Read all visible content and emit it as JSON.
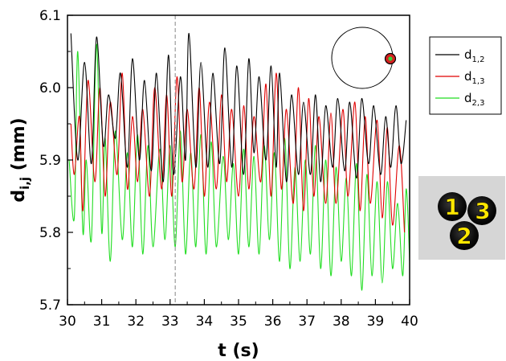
{
  "chart_data": {
    "type": "line",
    "xlabel": "t (s)",
    "ylabel_main": "d",
    "ylabel_sub": "i,j",
    "ylabel_unit": " (mm)",
    "xlim": [
      30,
      40
    ],
    "ylim": [
      5.7,
      6.1
    ],
    "x_ticks": [
      "30",
      "31",
      "32",
      "33",
      "34",
      "35",
      "36",
      "37",
      "38",
      "39",
      "40"
    ],
    "y_ticks": [
      "5.7",
      "5.8",
      "5.9",
      "6.0",
      "6.1"
    ],
    "marker_line_t": 33.15,
    "grid": false,
    "legend_position": "right",
    "series": [
      {
        "name_main": "d",
        "name_sub": "1,2",
        "color": "#000000",
        "peaks": [
          [
            30.1,
            6.075
          ],
          [
            30.5,
            6.035
          ],
          [
            30.85,
            6.07
          ],
          [
            31.2,
            5.99
          ],
          [
            31.55,
            6.02
          ],
          [
            31.9,
            6.04
          ],
          [
            32.25,
            6.01
          ],
          [
            32.6,
            6.02
          ],
          [
            32.95,
            6.045
          ],
          [
            33.3,
            6.015
          ],
          [
            33.55,
            6.075
          ],
          [
            33.9,
            6.035
          ],
          [
            34.25,
            6.02
          ],
          [
            34.6,
            6.055
          ],
          [
            34.95,
            6.03
          ],
          [
            35.3,
            6.04
          ],
          [
            35.6,
            6.015
          ],
          [
            35.95,
            6.03
          ],
          [
            36.2,
            6.02
          ],
          [
            36.55,
            5.99
          ],
          [
            36.9,
            5.98
          ],
          [
            37.25,
            5.99
          ],
          [
            37.55,
            5.975
          ],
          [
            37.9,
            5.985
          ],
          [
            38.25,
            5.98
          ],
          [
            38.6,
            5.985
          ],
          [
            38.95,
            5.975
          ],
          [
            39.3,
            5.96
          ],
          [
            39.6,
            5.975
          ],
          [
            39.9,
            5.955
          ]
        ],
        "troughs": [
          [
            30.3,
            5.9
          ],
          [
            30.7,
            5.895
          ],
          [
            31.05,
            5.92
          ],
          [
            31.4,
            5.93
          ],
          [
            31.75,
            5.89
          ],
          [
            32.1,
            5.9
          ],
          [
            32.45,
            5.885
          ],
          [
            32.8,
            5.87
          ],
          [
            33.1,
            5.88
          ],
          [
            33.45,
            5.9
          ],
          [
            33.75,
            5.89
          ],
          [
            34.1,
            5.89
          ],
          [
            34.45,
            5.895
          ],
          [
            34.8,
            5.89
          ],
          [
            35.15,
            5.88
          ],
          [
            35.45,
            5.91
          ],
          [
            35.8,
            5.9
          ],
          [
            36.1,
            5.89
          ],
          [
            36.4,
            5.87
          ],
          [
            36.75,
            5.88
          ],
          [
            37.1,
            5.88
          ],
          [
            37.4,
            5.87
          ],
          [
            37.75,
            5.89
          ],
          [
            38.1,
            5.885
          ],
          [
            38.45,
            5.875
          ],
          [
            38.8,
            5.895
          ],
          [
            39.15,
            5.88
          ],
          [
            39.45,
            5.89
          ],
          [
            39.75,
            5.895
          ]
        ]
      },
      {
        "name_main": "d",
        "name_sub": "1,3",
        "color": "#e00000",
        "peaks": [
          [
            30.1,
            5.95
          ],
          [
            30.35,
            5.96
          ],
          [
            30.6,
            6.01
          ],
          [
            30.95,
            6.0
          ],
          [
            31.25,
            5.98
          ],
          [
            31.6,
            6.02
          ],
          [
            31.9,
            5.96
          ],
          [
            32.2,
            5.97
          ],
          [
            32.55,
            6.0
          ],
          [
            32.9,
            5.99
          ],
          [
            33.2,
            6.015
          ],
          [
            33.5,
            5.97
          ],
          [
            33.85,
            6.0
          ],
          [
            34.15,
            5.98
          ],
          [
            34.5,
            5.99
          ],
          [
            34.8,
            5.97
          ],
          [
            35.15,
            5.975
          ],
          [
            35.45,
            5.96
          ],
          [
            35.8,
            6.005
          ],
          [
            36.1,
            6.02
          ],
          [
            36.4,
            5.97
          ],
          [
            36.75,
            6.0
          ],
          [
            37.05,
            5.985
          ],
          [
            37.35,
            5.96
          ],
          [
            37.7,
            5.965
          ],
          [
            38.05,
            5.97
          ],
          [
            38.4,
            5.98
          ],
          [
            38.7,
            5.96
          ],
          [
            39.05,
            5.955
          ],
          [
            39.35,
            5.945
          ],
          [
            39.7,
            5.92
          ]
        ],
        "troughs": [
          [
            30.2,
            5.88
          ],
          [
            30.45,
            5.83
          ],
          [
            30.8,
            5.87
          ],
          [
            31.1,
            5.85
          ],
          [
            31.45,
            5.88
          ],
          [
            31.75,
            5.86
          ],
          [
            32.05,
            5.87
          ],
          [
            32.4,
            5.85
          ],
          [
            32.75,
            5.86
          ],
          [
            33.05,
            5.85
          ],
          [
            33.35,
            5.87
          ],
          [
            33.7,
            5.86
          ],
          [
            34.0,
            5.85
          ],
          [
            34.35,
            5.86
          ],
          [
            34.65,
            5.87
          ],
          [
            35.0,
            5.85
          ],
          [
            35.3,
            5.86
          ],
          [
            35.65,
            5.87
          ],
          [
            35.95,
            5.85
          ],
          [
            36.25,
            5.86
          ],
          [
            36.6,
            5.84
          ],
          [
            36.9,
            5.83
          ],
          [
            37.2,
            5.85
          ],
          [
            37.55,
            5.84
          ],
          [
            37.85,
            5.84
          ],
          [
            38.2,
            5.85
          ],
          [
            38.55,
            5.83
          ],
          [
            38.85,
            5.84
          ],
          [
            39.2,
            5.82
          ],
          [
            39.5,
            5.81
          ],
          [
            39.85,
            5.8
          ]
        ]
      },
      {
        "name_main": "d",
        "name_sub": "2,3",
        "color": "#22dd22",
        "peaks": [
          [
            30.05,
            5.9
          ],
          [
            30.3,
            6.05
          ],
          [
            30.55,
            5.9
          ],
          [
            30.85,
            6.06
          ],
          [
            31.1,
            5.93
          ],
          [
            31.4,
            5.94
          ],
          [
            31.75,
            5.91
          ],
          [
            32.05,
            5.935
          ],
          [
            32.35,
            5.92
          ],
          [
            32.7,
            5.915
          ],
          [
            33.0,
            5.92
          ],
          [
            33.3,
            5.94
          ],
          [
            33.6,
            5.91
          ],
          [
            33.9,
            5.935
          ],
          [
            34.2,
            5.925
          ],
          [
            34.55,
            5.905
          ],
          [
            34.85,
            5.895
          ],
          [
            35.15,
            5.915
          ],
          [
            35.45,
            5.905
          ],
          [
            35.75,
            5.92
          ],
          [
            36.05,
            5.91
          ],
          [
            36.35,
            5.93
          ],
          [
            36.65,
            5.89
          ],
          [
            36.95,
            5.9
          ],
          [
            37.25,
            5.92
          ],
          [
            37.55,
            5.9
          ],
          [
            37.85,
            5.89
          ],
          [
            38.15,
            5.875
          ],
          [
            38.45,
            5.895
          ],
          [
            38.75,
            5.88
          ],
          [
            39.05,
            5.87
          ],
          [
            39.35,
            5.87
          ],
          [
            39.65,
            5.84
          ],
          [
            39.9,
            5.86
          ]
        ],
        "troughs": [
          [
            30.2,
            5.82
          ],
          [
            30.45,
            5.8
          ],
          [
            30.7,
            5.79
          ],
          [
            31.0,
            5.8
          ],
          [
            31.25,
            5.76
          ],
          [
            31.6,
            5.79
          ],
          [
            31.9,
            5.78
          ],
          [
            32.2,
            5.77
          ],
          [
            32.5,
            5.78
          ],
          [
            32.85,
            5.79
          ],
          [
            33.15,
            5.78
          ],
          [
            33.45,
            5.77
          ],
          [
            33.75,
            5.78
          ],
          [
            34.05,
            5.77
          ],
          [
            34.35,
            5.78
          ],
          [
            34.7,
            5.79
          ],
          [
            35.0,
            5.77
          ],
          [
            35.3,
            5.78
          ],
          [
            35.6,
            5.77
          ],
          [
            35.9,
            5.79
          ],
          [
            36.2,
            5.76
          ],
          [
            36.5,
            5.75
          ],
          [
            36.8,
            5.76
          ],
          [
            37.1,
            5.77
          ],
          [
            37.4,
            5.75
          ],
          [
            37.7,
            5.74
          ],
          [
            38.0,
            5.76
          ],
          [
            38.3,
            5.74
          ],
          [
            38.6,
            5.72
          ],
          [
            38.9,
            5.74
          ],
          [
            39.2,
            5.73
          ],
          [
            39.5,
            5.75
          ],
          [
            39.8,
            5.74
          ],
          [
            40.0,
            5.76
          ]
        ]
      }
    ]
  },
  "photo": {
    "labels": [
      "1",
      "2",
      "3"
    ]
  }
}
